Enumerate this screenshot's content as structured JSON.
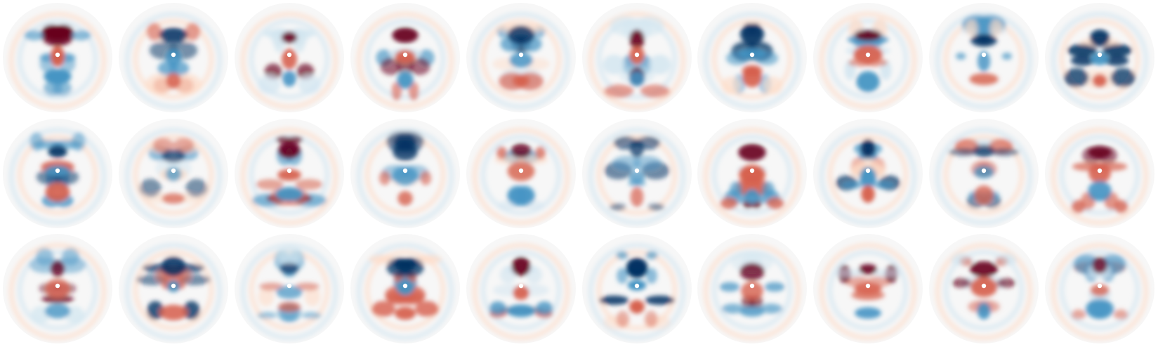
{
  "figure": {
    "rows": 3,
    "cols": 10,
    "colormap": {
      "negative": "#053061",
      "mid_negative": "#4393c3",
      "light_negative": "#d1e5f0",
      "neutral": "#f7f7f7",
      "light_positive": "#fddbc7",
      "mid_positive": "#d6604d",
      "positive": "#67001f"
    },
    "background": "#ffffff",
    "center_marker_color": "#ffffff",
    "panels": [
      {
        "id": "r1c1",
        "dominant": "positive",
        "strength": 0.95
      },
      {
        "id": "r1c2",
        "dominant": "negative",
        "strength": 0.7
      },
      {
        "id": "r1c3",
        "dominant": "positive",
        "strength": 0.75
      },
      {
        "id": "r1c4",
        "dominant": "positive",
        "strength": 0.85
      },
      {
        "id": "r1c5",
        "dominant": "negative",
        "strength": 0.65
      },
      {
        "id": "r1c6",
        "dominant": "positive",
        "strength": 0.8
      },
      {
        "id": "r1c7",
        "dominant": "negative",
        "strength": 0.8
      },
      {
        "id": "r1c8",
        "dominant": "positive",
        "strength": 0.85
      },
      {
        "id": "r1c9",
        "dominant": "negative",
        "strength": 0.6
      },
      {
        "id": "r1c10",
        "dominant": "negative",
        "strength": 0.85
      },
      {
        "id": "r2c1",
        "dominant": "negative",
        "strength": 0.8
      },
      {
        "id": "r2c2",
        "dominant": "negative",
        "strength": 0.35
      },
      {
        "id": "r2c3",
        "dominant": "positive",
        "strength": 0.85
      },
      {
        "id": "r2c4",
        "dominant": "negative",
        "strength": 0.55
      },
      {
        "id": "r2c5",
        "dominant": "positive",
        "strength": 0.6
      },
      {
        "id": "r2c6",
        "dominant": "negative",
        "strength": 0.35
      },
      {
        "id": "r2c7",
        "dominant": "positive",
        "strength": 0.8
      },
      {
        "id": "r2c8",
        "dominant": "negative",
        "strength": 0.9
      },
      {
        "id": "r2c9",
        "dominant": "negative",
        "strength": 0.5
      },
      {
        "id": "r2c10",
        "dominant": "positive",
        "strength": 0.75
      },
      {
        "id": "r3c1",
        "dominant": "positive",
        "strength": 0.55
      },
      {
        "id": "r3c2",
        "dominant": "negative",
        "strength": 0.7
      },
      {
        "id": "r3c3",
        "dominant": "negative",
        "strength": 0.35
      },
      {
        "id": "r3c4",
        "dominant": "negative",
        "strength": 0.85
      },
      {
        "id": "r3c5",
        "dominant": "positive",
        "strength": 0.85
      },
      {
        "id": "r3c6",
        "dominant": "negative",
        "strength": 0.95
      },
      {
        "id": "r3c7",
        "dominant": "positive",
        "strength": 0.55
      },
      {
        "id": "r3c8",
        "dominant": "positive",
        "strength": 0.75
      },
      {
        "id": "r3c9",
        "dominant": "positive",
        "strength": 0.8
      },
      {
        "id": "r3c10",
        "dominant": "positive",
        "strength": 0.55
      }
    ]
  }
}
